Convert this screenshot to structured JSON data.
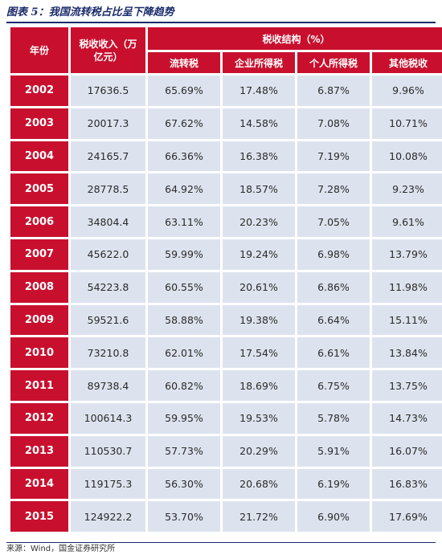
{
  "title": "图表 5：我国流转税占比呈下降趋势",
  "header": {
    "year": "年份",
    "revenue": "税收收入（万亿元）",
    "structure": "税收结构（%）",
    "turnover": "流转税",
    "corporate": "企业所得税",
    "personal": "个人所得税",
    "other": "其他税收"
  },
  "rows": [
    {
      "year": "2002",
      "revenue": "17636.5",
      "turnover": "65.69%",
      "corporate": "17.48%",
      "personal": "6.87%",
      "other": "9.96%"
    },
    {
      "year": "2003",
      "revenue": "20017.3",
      "turnover": "67.62%",
      "corporate": "14.58%",
      "personal": "7.08%",
      "other": "10.71%"
    },
    {
      "year": "2004",
      "revenue": "24165.7",
      "turnover": "66.36%",
      "corporate": "16.38%",
      "personal": "7.19%",
      "other": "10.08%"
    },
    {
      "year": "2005",
      "revenue": "28778.5",
      "turnover": "64.92%",
      "corporate": "18.57%",
      "personal": "7.28%",
      "other": "9.23%"
    },
    {
      "year": "2006",
      "revenue": "34804.4",
      "turnover": "63.11%",
      "corporate": "20.23%",
      "personal": "7.05%",
      "other": "9.61%"
    },
    {
      "year": "2007",
      "revenue": "45622.0",
      "turnover": "59.99%",
      "corporate": "19.24%",
      "personal": "6.98%",
      "other": "13.79%"
    },
    {
      "year": "2008",
      "revenue": "54223.8",
      "turnover": "60.55%",
      "corporate": "20.61%",
      "personal": "6.86%",
      "other": "11.98%"
    },
    {
      "year": "2009",
      "revenue": "59521.6",
      "turnover": "58.88%",
      "corporate": "19.38%",
      "personal": "6.64%",
      "other": "15.11%"
    },
    {
      "year": "2010",
      "revenue": "73210.8",
      "turnover": "62.01%",
      "corporate": "17.54%",
      "personal": "6.61%",
      "other": "13.84%"
    },
    {
      "year": "2011",
      "revenue": "89738.4",
      "turnover": "60.82%",
      "corporate": "18.69%",
      "personal": "6.75%",
      "other": "13.75%"
    },
    {
      "year": "2012",
      "revenue": "100614.3",
      "turnover": "59.95%",
      "corporate": "19.53%",
      "personal": "5.78%",
      "other": "14.73%"
    },
    {
      "year": "2013",
      "revenue": "110530.7",
      "turnover": "57.73%",
      "corporate": "20.29%",
      "personal": "5.91%",
      "other": "16.07%"
    },
    {
      "year": "2014",
      "revenue": "119175.3",
      "turnover": "56.30%",
      "corporate": "20.68%",
      "personal": "6.19%",
      "other": "16.83%"
    },
    {
      "year": "2015",
      "revenue": "124922.2",
      "turnover": "53.70%",
      "corporate": "21.72%",
      "personal": "6.90%",
      "other": "17.69%"
    }
  ],
  "source": "来源：Wind，国金证券研究所"
}
